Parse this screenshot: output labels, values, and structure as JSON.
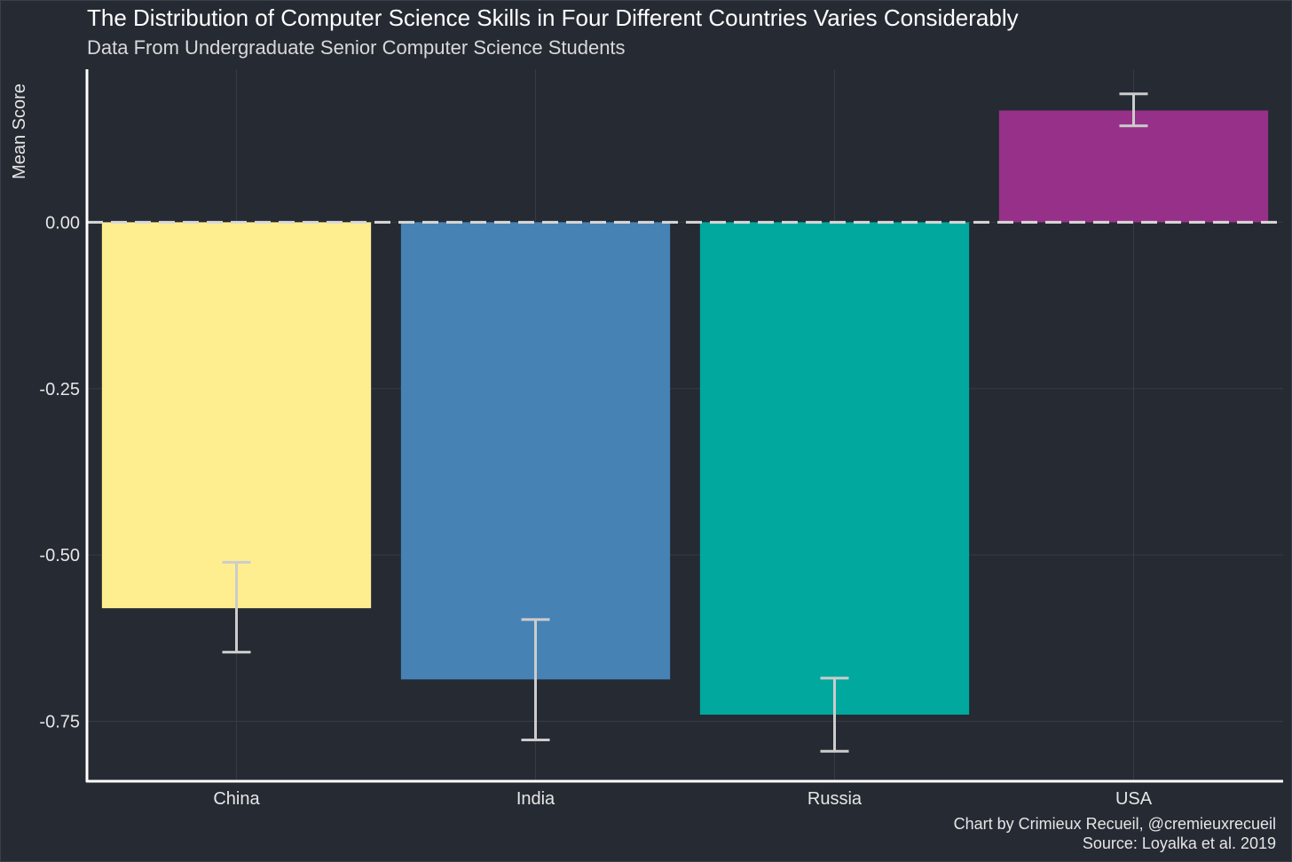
{
  "chart_data": {
    "type": "bar",
    "title": "The Distribution of Computer Science Skills in Four Different Countries Varies Considerably",
    "subtitle": "Data From Undergraduate Senior Computer Science Students",
    "xlabel": "",
    "ylabel": "Mean Score",
    "categories": [
      "China",
      "India",
      "Russia",
      "USA"
    ],
    "values": [
      -0.58,
      -0.687,
      -0.74,
      0.168
    ],
    "error_low": [
      -0.646,
      -0.778,
      -0.795,
      0.145
    ],
    "error_high": [
      -0.511,
      -0.597,
      -0.685,
      0.193
    ],
    "colors": [
      "#ffee8f",
      "#4682b4",
      "#00a89e",
      "#973089"
    ],
    "ylim": [
      -0.84,
      0.23
    ],
    "yticks": [
      0.0,
      -0.25,
      -0.5,
      -0.75
    ],
    "ytick_labels": [
      "0.00",
      "-0.25",
      "-0.50",
      "-0.75"
    ],
    "reference_line": 0,
    "grid": true,
    "legend": "none"
  },
  "caption": {
    "credit": "Chart by Crimieux Recueil, @cremieuxrecueil",
    "source": "Source: Loyalka et al. 2019"
  },
  "theme": {
    "background": "#252a33",
    "grid": "#363b44",
    "axis": "#ffffff",
    "errorbar": "#cccccc",
    "refline": "#d9d9d9"
  }
}
